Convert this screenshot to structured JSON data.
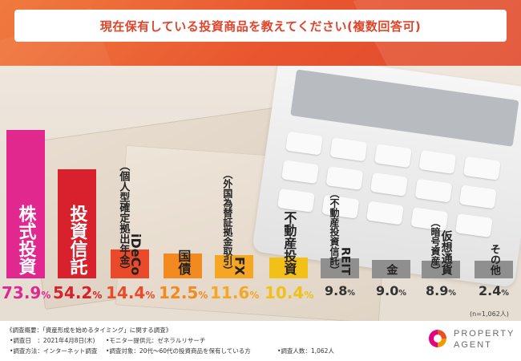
{
  "title": "現在保有している投資商品を教えてください(複数回答可)",
  "chart_data": {
    "type": "bar",
    "title": "現在保有している投資商品を教えてください(複数回答可)",
    "categories": [
      "株式投資",
      "投資信託",
      "iDeCo（個人型確定拠出年金）",
      "国債",
      "FX（外国為替証拠金取引）",
      "不動産投資",
      "REIT（不動産投資信託）",
      "金",
      "仮想通貨（暗号資産）",
      "その他"
    ],
    "values": [
      73.9,
      54.2,
      14.4,
      12.5,
      11.6,
      10.4,
      9.8,
      9.0,
      8.9,
      2.4
    ],
    "value_labels": [
      "73.9%",
      "54.2%",
      "14.4%",
      "12.5%",
      "11.6%",
      "10.4%",
      "9.8%",
      "9.0%",
      "8.9%",
      "2.4%"
    ],
    "bar_colors": [
      "#e0288f",
      "#d8212c",
      "#ea4a2a",
      "#f38a1f",
      "#f5a623",
      "#f2c016",
      "#8f8f8f",
      "#8f8f8f",
      "#8f8f8f",
      "#8f8f8f"
    ],
    "value_colors": [
      "#e0288f",
      "#d8212c",
      "#ea4a2a",
      "#f38a1f",
      "#f5a623",
      "#f2c016",
      "#333333",
      "#333333",
      "#333333",
      "#333333"
    ],
    "ylim": [
      0,
      75
    ],
    "grid": false,
    "legend": "none",
    "note": "(n=1,062人)"
  },
  "footer": {
    "line1": "《調査概要：「資産形成を始めるタイミング」に関する調査》",
    "line2a": "•調査日　：2021年4月8日(木)",
    "line2b": "•モニター提供元：ゼネラルリサーチ",
    "line3a": "•調査方法：インターネット調査",
    "line3b": "•調査対象：20代～60代の投資商品を保有している方",
    "line3c": "•調査人数：1,062人"
  },
  "brand": {
    "line1": "PROPERTY",
    "line2": "AGENT",
    "colors": [
      "#e94e24",
      "#f39800",
      "#e4007f"
    ]
  },
  "colors": {
    "header": "#e8552f",
    "title_text": "#e0442a"
  }
}
